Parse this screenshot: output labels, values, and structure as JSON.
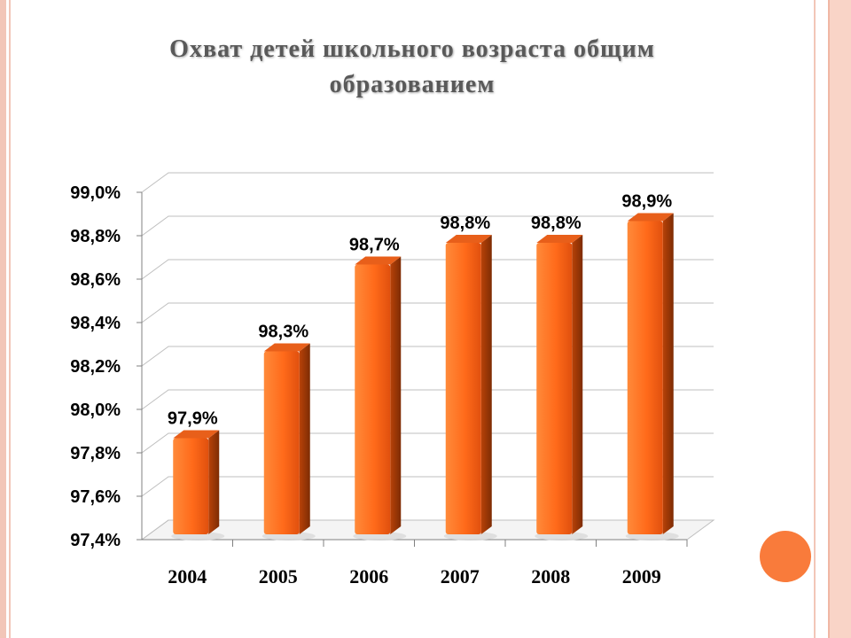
{
  "title": {
    "line1": "Охват детей школьного возраста общим",
    "line2": "образованием"
  },
  "chart_data": {
    "type": "bar",
    "categories": [
      "2004",
      "2005",
      "2006",
      "2007",
      "2008",
      "2009"
    ],
    "values": [
      97.9,
      98.3,
      98.7,
      98.8,
      98.8,
      98.9
    ],
    "data_labels": [
      "97,9%",
      "98,3%",
      "98,7%",
      "98,8%",
      "98,8%",
      "98,9%"
    ],
    "yticks": [
      "97,4%",
      "97,6%",
      "97,8%",
      "98,0%",
      "98,2%",
      "98,4%",
      "98,6%",
      "98,8%",
      "99,0%"
    ],
    "ylim": [
      97.4,
      99.0
    ],
    "grid": true,
    "legend": "none",
    "title": "",
    "xlabel": "",
    "ylabel": ""
  },
  "colors": {
    "bar_light": "#ff7a2a",
    "bar_dark": "#a63a05",
    "bar_top": "#e85f1a",
    "grid": "#bfbfbf",
    "accent_circle": "#f97b3b",
    "border": "#f2c6b8"
  }
}
